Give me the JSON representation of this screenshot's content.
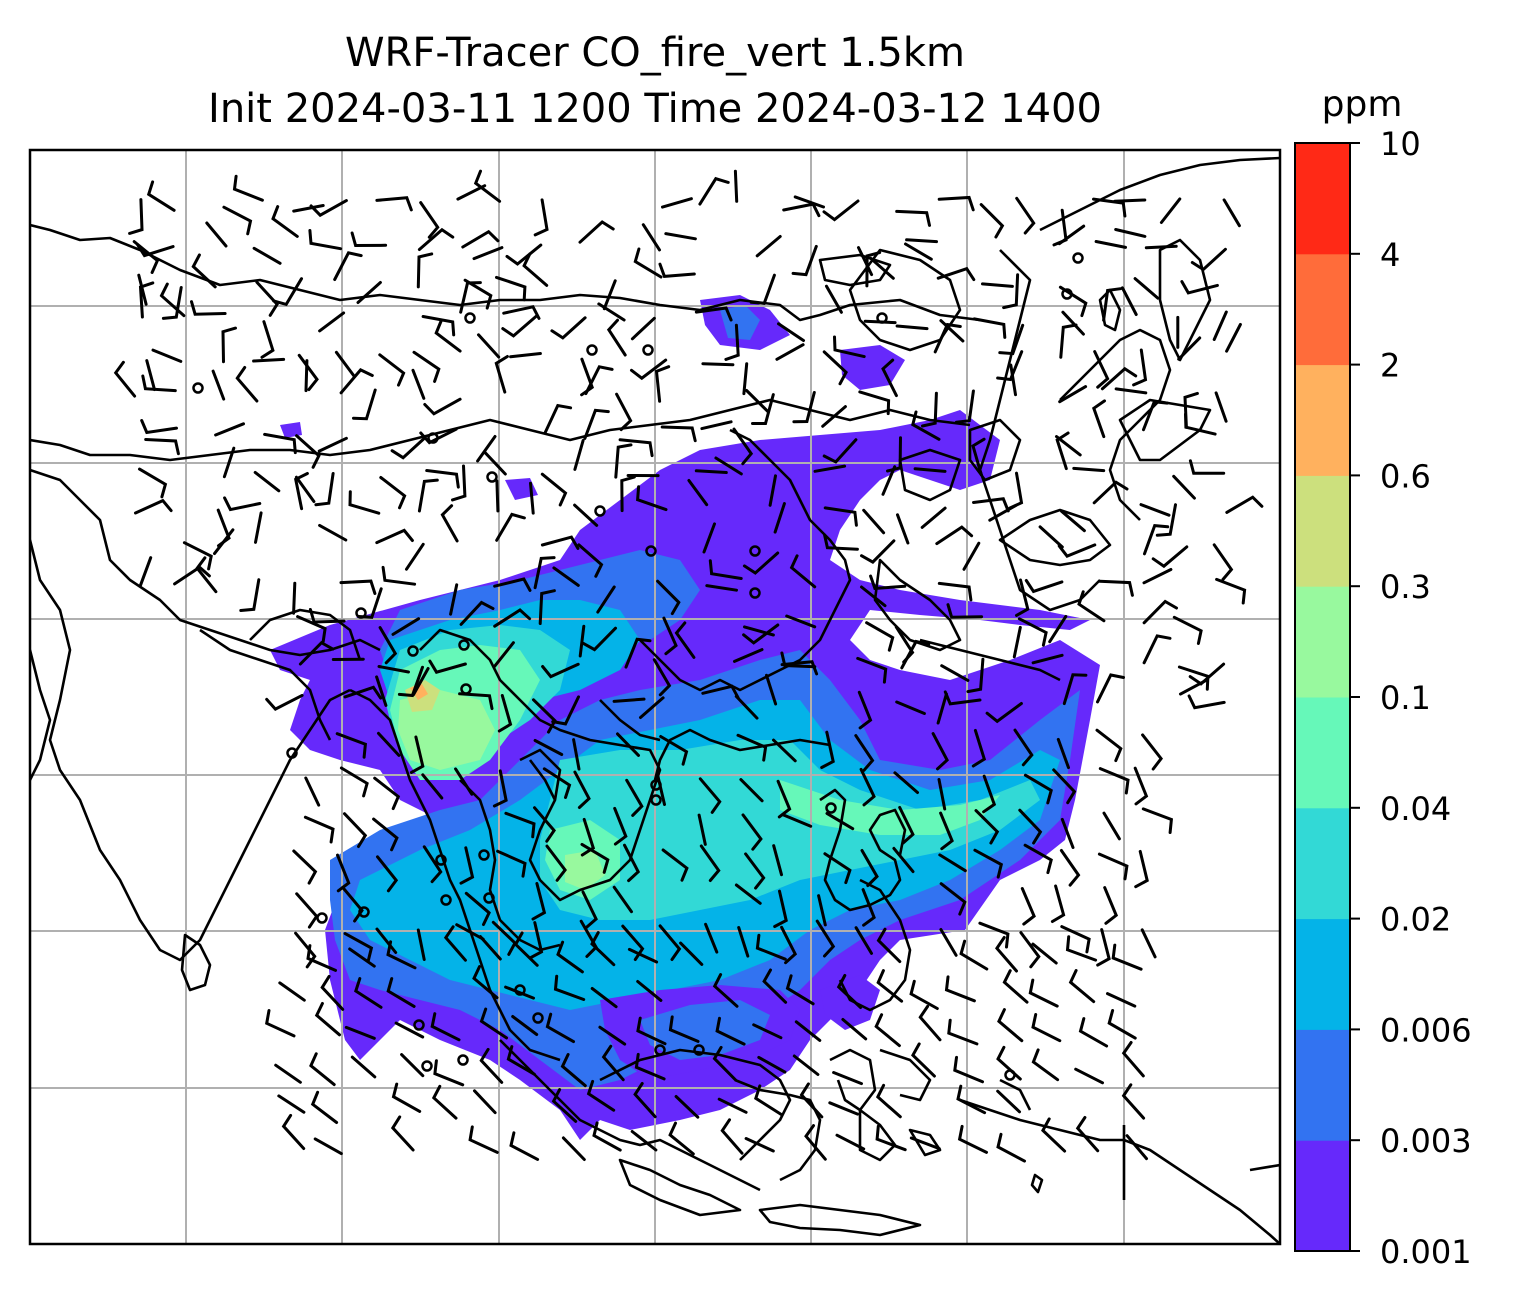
{
  "title": {
    "line1": "WRF-Tracer CO_fire_vert 1.5km",
    "line2": "Init 2024-03-11 1200 Time 2024-03-12 1400"
  },
  "colorbar": {
    "unit": "ppm",
    "levels": [
      "0.001",
      "0.003",
      "0.006",
      "0.02",
      "0.04",
      "0.1",
      "0.3",
      "0.6",
      "2",
      "4",
      "10"
    ],
    "colors": [
      "#6629fb",
      "#3273f1",
      "#04b3e8",
      "#32d9d6",
      "#66f8b9",
      "#98f99e",
      "#cce07d",
      "#ffb15e",
      "#ff6c3a",
      "#ff2916"
    ]
  },
  "map": {
    "coastline_color": "#000000",
    "gridline_color": "#b0b0b0",
    "wind_barb_color": "#000000",
    "calm_marker": "circle"
  }
}
